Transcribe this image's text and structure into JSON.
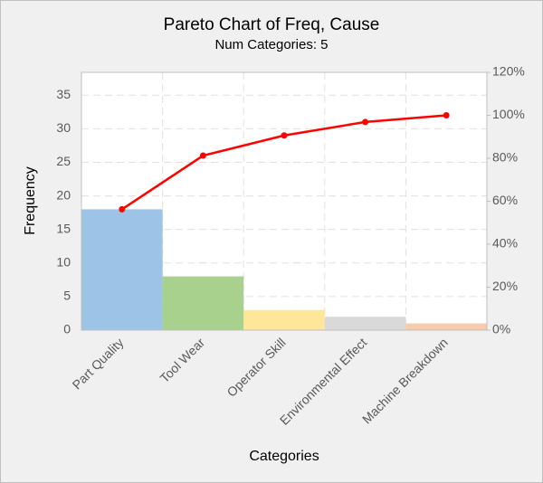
{
  "chart_data": {
    "type": "pareto",
    "title": "Pareto Chart of Freq, Cause",
    "subtitle": "Num Categories: 5",
    "x_label": "Categories",
    "y_label": "Frequency",
    "categories": [
      "Part Quality",
      "Tool Wear",
      "Operator Skill",
      "Environmental Effect",
      "Machine Breakdown"
    ],
    "series": [
      {
        "type": "bar",
        "colors": [
          "#9dc3e6",
          "#a9d18e",
          "#ffe699",
          "#d9d9d9",
          "#f8cbad"
        ],
        "values": [
          18,
          8,
          3,
          2,
          1
        ]
      },
      {
        "type": "line",
        "color": "#ff0000",
        "axis": "y2",
        "values": [
          56.25,
          81.25,
          90.625,
          96.875,
          100
        ]
      }
    ],
    "ylim": [
      0,
      38.4
    ],
    "yticks": [
      0,
      5,
      10,
      15,
      20,
      25,
      30,
      35
    ],
    "y2lim": [
      0,
      120
    ],
    "y2ticks": [
      {
        "value": 0,
        "label": "0%"
      },
      {
        "value": 20,
        "label": "20%"
      },
      {
        "value": 40,
        "label": "40%"
      },
      {
        "value": 60,
        "label": "60%"
      },
      {
        "value": 80,
        "label": "80%"
      },
      {
        "value": 100,
        "label": "100%"
      },
      {
        "value": 120,
        "label": "120%"
      }
    ],
    "grid": true
  }
}
